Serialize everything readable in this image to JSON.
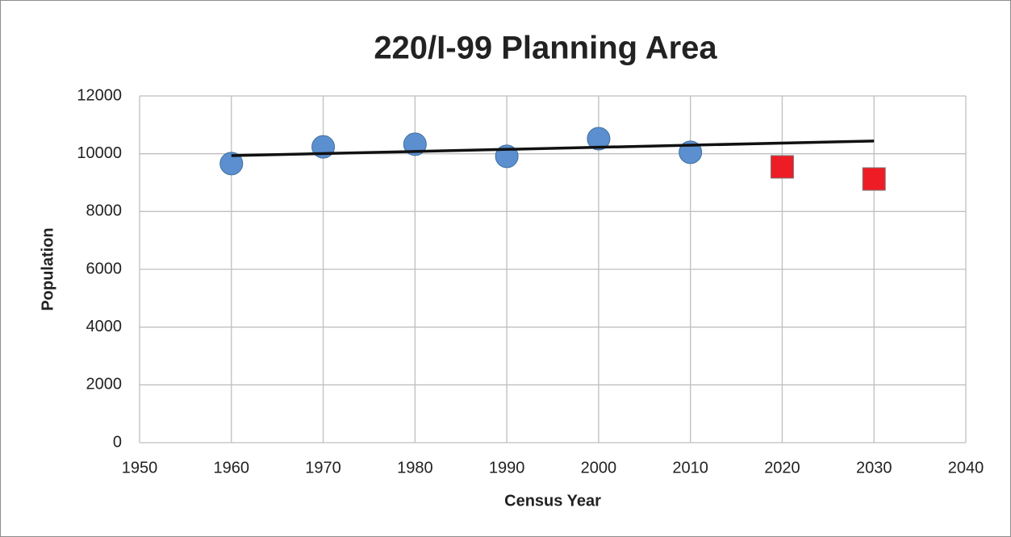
{
  "chart_data": {
    "type": "scatter",
    "title": "220/I-99 Planning Area",
    "x_label": "Census Year",
    "y_label": "Population",
    "xlim": [
      1950,
      2040
    ],
    "xticks": [
      1950,
      1960,
      1970,
      1980,
      1990,
      2000,
      2010,
      2020,
      2030,
      2040
    ],
    "ylim": [
      0,
      12000
    ],
    "yticks": [
      0,
      2000,
      4000,
      6000,
      8000,
      10000,
      12000
    ],
    "grid": true,
    "series": [
      {
        "marker": "circle",
        "color": "#5b8fd0",
        "x": [
          1960,
          1970,
          1980,
          1990,
          2000,
          2010
        ],
        "values": [
          9660,
          10240,
          10330,
          9910,
          10520,
          10050
        ]
      },
      {
        "marker": "square",
        "color": "#ee1c25",
        "x": [
          2020,
          2030
        ],
        "values": [
          9545,
          9125
        ]
      },
      {
        "marker": "line",
        "color": "#111111",
        "x": [
          1960,
          2030
        ],
        "values": [
          9935,
          10440
        ]
      }
    ]
  }
}
